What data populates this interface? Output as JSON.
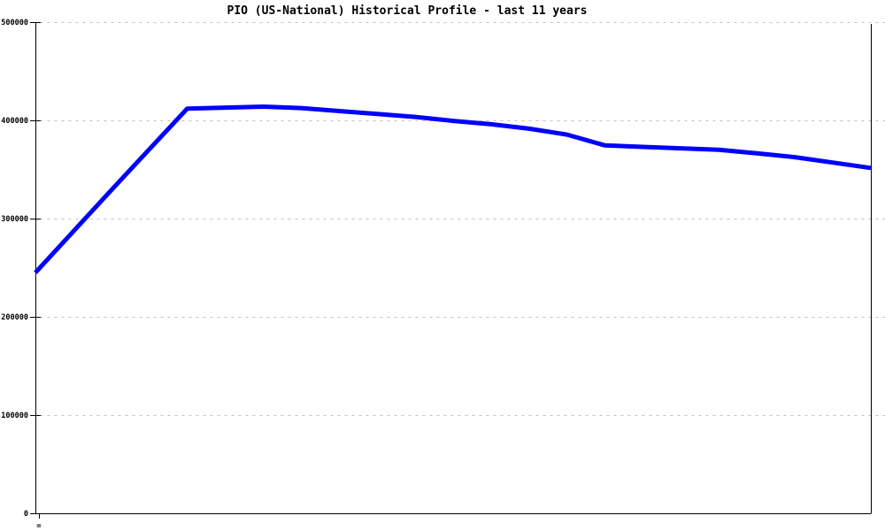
{
  "page": {
    "background": "#ffffff"
  },
  "chart_data": {
    "type": "line",
    "title": "PIO (US-National) Historical Profile - last 11 years",
    "xlabel": "",
    "ylabel": "",
    "ylim": [
      0,
      500000
    ],
    "y_tick_values": [
      0,
      100000,
      200000,
      300000,
      400000,
      500000
    ],
    "y_tick_labels": [
      "0",
      "100000",
      "200000",
      "300000",
      "400000",
      "500000"
    ],
    "x_tick_labels_visible": false,
    "clipped_x_label_fragment": "=",
    "grid": "horizontal dashed gridlines at each y tick",
    "legend_position": "none",
    "colors": {
      "line": "#0000ff",
      "grid": "#c0c0c0",
      "axis": "#000000",
      "title": "#000000",
      "background": "#ffffff"
    },
    "series": [
      {
        "name": "PIO (US-National)",
        "color": "#0000ff",
        "x_note": "23 evenly spaced points spanning the last 11 years (x tick labels clipped/not visible)",
        "values": [
          245000,
          287000,
          329000,
          370500,
          412000,
          413000,
          414000,
          412500,
          409500,
          406500,
          403500,
          399500,
          396000,
          391500,
          385500,
          374500,
          373000,
          371500,
          370000,
          366500,
          362500,
          357000,
          351500
        ]
      }
    ]
  }
}
